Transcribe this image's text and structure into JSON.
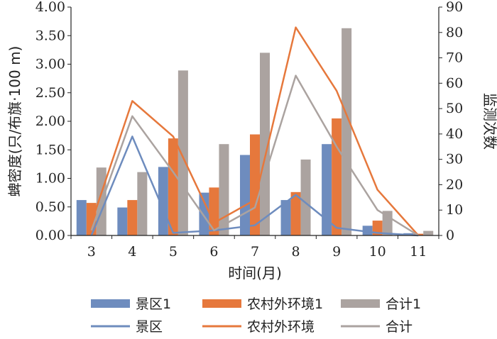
{
  "chart_data": {
    "type": "bar",
    "xlabel": "时间(月)",
    "ylabel": "蜱密度(只/布旗·100 m)",
    "ylabel_right": "监测次数",
    "categories": [
      "3",
      "4",
      "5",
      "6",
      "7",
      "8",
      "9",
      "10",
      "11"
    ],
    "ylim": [
      0,
      4.0
    ],
    "yticks": [
      "0.00",
      "0.50",
      "1.00",
      "1.50",
      "2.00",
      "2.50",
      "3.00",
      "3.50",
      "4.00"
    ],
    "ylim_right": [
      0,
      90
    ],
    "yticks_right": [
      "0",
      "10",
      "20",
      "30",
      "40",
      "50",
      "60",
      "70",
      "80",
      "90"
    ],
    "legend_position": "bottom",
    "grid": false,
    "bar_series": [
      {
        "name": "景区1",
        "color": "#6E8CBE",
        "values": [
          0.62,
          0.49,
          1.2,
          0.75,
          1.41,
          0.62,
          1.6,
          0.17,
          0.04
        ]
      },
      {
        "name": "农村外环境1",
        "color": "#E6783C",
        "values": [
          0.57,
          0.62,
          1.7,
          0.84,
          1.77,
          0.76,
          2.05,
          0.26,
          0.03
        ]
      },
      {
        "name": "合计1",
        "color": "#ABA3A0",
        "values": [
          1.19,
          1.11,
          2.89,
          1.6,
          3.2,
          1.33,
          3.63,
          0.43,
          0.08
        ]
      }
    ],
    "line_series": [
      {
        "name": "景区",
        "color": "#6E8CBE",
        "axis": "right",
        "values": [
          0,
          39,
          1,
          2,
          4,
          16,
          3,
          1,
          0
        ]
      },
      {
        "name": "农村外环境",
        "color": "#E6783C",
        "axis": "right",
        "values": [
          5,
          53,
          39,
          5,
          14,
          82,
          57,
          18,
          0
        ]
      },
      {
        "name": "合计",
        "color": "#ABA3A0",
        "axis": "right",
        "values": [
          2,
          47,
          25,
          2,
          11,
          63,
          35,
          10,
          0
        ]
      }
    ]
  }
}
